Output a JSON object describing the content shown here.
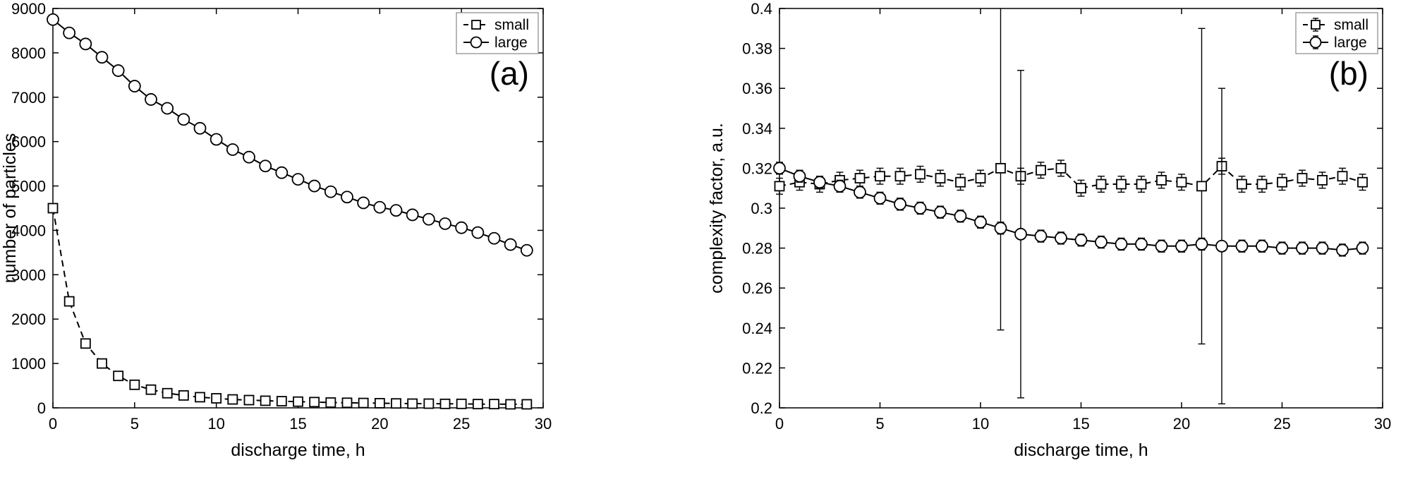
{
  "figure": {
    "background": "#ffffff",
    "axis_color": "#000000",
    "text_color": "#000000"
  },
  "chart_data": [
    {
      "type": "line",
      "panel_label": "(a)",
      "xlabel": "discharge time, h",
      "ylabel": "number of particles",
      "xlim": [
        0,
        30
      ],
      "ylim": [
        0,
        9000
      ],
      "xticks": [
        0,
        5,
        10,
        15,
        20,
        25,
        30
      ],
      "xtick_labels": [
        "0",
        "5",
        "10",
        "15",
        "20",
        "25",
        "30"
      ],
      "yticks": [
        0,
        1000,
        2000,
        3000,
        4000,
        5000,
        6000,
        7000,
        8000,
        9000
      ],
      "ytick_labels": [
        "0",
        "1000",
        "2000",
        "3000",
        "4000",
        "5000",
        "6000",
        "7000",
        "8000",
        "9000"
      ],
      "grid": false,
      "legend_position": "top-right",
      "legend_errorbar": false,
      "x": [
        0,
        1,
        2,
        3,
        4,
        5,
        6,
        7,
        8,
        9,
        10,
        11,
        12,
        13,
        14,
        15,
        16,
        17,
        18,
        19,
        20,
        21,
        22,
        23,
        24,
        25,
        26,
        27,
        28,
        29
      ],
      "series": [
        {
          "name": "small",
          "marker": "square",
          "line": "dashed",
          "values": [
            4500,
            2400,
            1450,
            1000,
            720,
            520,
            410,
            330,
            280,
            240,
            215,
            190,
            175,
            160,
            150,
            140,
            130,
            120,
            115,
            110,
            105,
            100,
            95,
            95,
            90,
            90,
            85,
            85,
            80,
            80
          ]
        },
        {
          "name": "large",
          "marker": "circle",
          "line": "solid",
          "values": [
            8750,
            8450,
            8200,
            7900,
            7600,
            7250,
            6950,
            6750,
            6500,
            6300,
            6050,
            5820,
            5650,
            5450,
            5300,
            5150,
            5000,
            4870,
            4750,
            4620,
            4520,
            4450,
            4350,
            4250,
            4150,
            4060,
            3950,
            3820,
            3680,
            3550
          ]
        }
      ]
    },
    {
      "type": "line",
      "panel_label": "(b)",
      "xlabel": "discharge time, h",
      "ylabel": "complexity factor, a.u.",
      "xlim": [
        0,
        30
      ],
      "ylim": [
        0.2,
        0.4
      ],
      "xticks": [
        0,
        5,
        10,
        15,
        20,
        25,
        30
      ],
      "xtick_labels": [
        "0",
        "5",
        "10",
        "15",
        "20",
        "25",
        "30"
      ],
      "yticks": [
        0.2,
        0.22,
        0.24,
        0.26,
        0.28,
        0.3,
        0.32,
        0.34,
        0.36,
        0.38,
        0.4
      ],
      "ytick_labels": [
        "0.2",
        "0.22",
        "0.24",
        "0.26",
        "0.28",
        "0.3",
        "0.32",
        "0.34",
        "0.36",
        "0.38",
        "0.4"
      ],
      "grid": false,
      "legend_position": "top-right",
      "legend_errorbar": true,
      "x": [
        0,
        1,
        2,
        3,
        4,
        5,
        6,
        7,
        8,
        9,
        10,
        11,
        12,
        13,
        14,
        15,
        16,
        17,
        18,
        19,
        20,
        21,
        22,
        23,
        24,
        25,
        26,
        27,
        28,
        29
      ],
      "series": [
        {
          "name": "small",
          "marker": "square",
          "line": "dashed",
          "values": [
            0.311,
            0.313,
            0.312,
            0.314,
            0.315,
            0.316,
            0.316,
            0.317,
            0.315,
            0.313,
            0.315,
            0.32,
            0.316,
            0.319,
            0.32,
            0.31,
            0.312,
            0.312,
            0.312,
            0.314,
            0.313,
            0.311,
            0.321,
            0.312,
            0.312,
            0.313,
            0.315,
            0.314,
            0.316,
            0.313
          ],
          "errors": [
            0.004,
            0.004,
            0.004,
            0.004,
            0.004,
            0.004,
            0.004,
            0.004,
            0.004,
            0.004,
            0.004,
            0.081,
            0.004,
            0.004,
            0.004,
            0.004,
            0.004,
            0.004,
            0.004,
            0.004,
            0.004,
            0.079,
            0.004,
            0.004,
            0.004,
            0.004,
            0.004,
            0.004,
            0.004,
            0.004
          ]
        },
        {
          "name": "large",
          "marker": "circle",
          "line": "solid",
          "values": [
            0.32,
            0.316,
            0.313,
            0.311,
            0.308,
            0.305,
            0.302,
            0.3,
            0.298,
            0.296,
            0.293,
            0.29,
            0.287,
            0.286,
            0.285,
            0.284,
            0.283,
            0.282,
            0.282,
            0.281,
            0.281,
            0.282,
            0.281,
            0.281,
            0.281,
            0.28,
            0.28,
            0.28,
            0.279,
            0.28
          ],
          "errors": [
            0.003,
            0.003,
            0.003,
            0.003,
            0.003,
            0.003,
            0.003,
            0.003,
            0.003,
            0.003,
            0.003,
            0.003,
            0.082,
            0.003,
            0.003,
            0.003,
            0.003,
            0.003,
            0.003,
            0.003,
            0.003,
            0.003,
            0.079,
            0.003,
            0.003,
            0.003,
            0.003,
            0.003,
            0.003,
            0.003
          ]
        }
      ]
    }
  ]
}
